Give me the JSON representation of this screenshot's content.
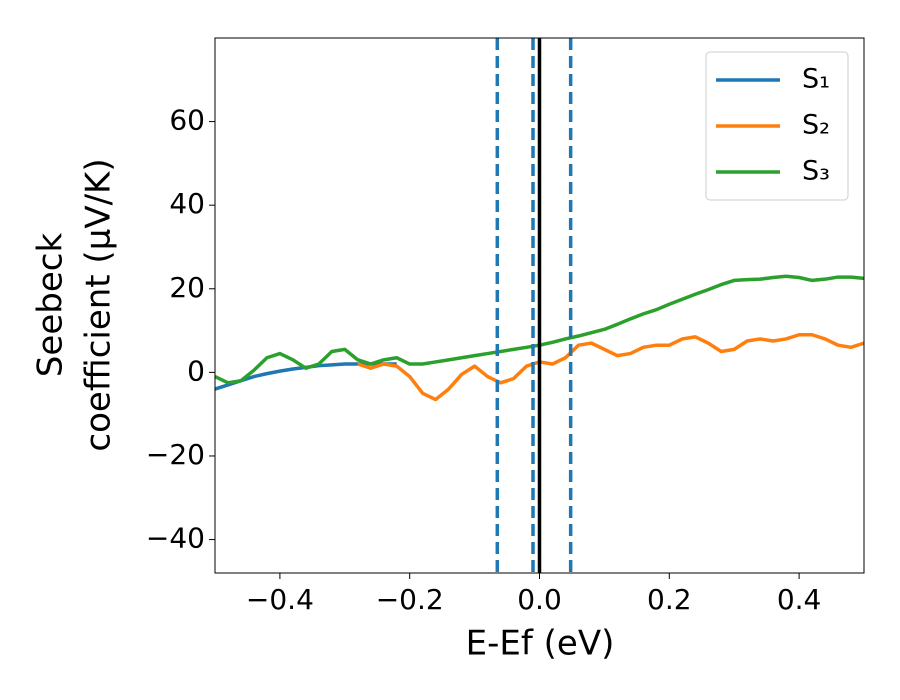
{
  "chart_data": {
    "type": "line",
    "ylabel": [
      "Seebeck",
      "coefficient  (μV/K)"
    ],
    "xlabel": "E-Ef (eV)",
    "x": [
      -0.5,
      -0.48,
      -0.46,
      -0.44,
      -0.42,
      -0.4,
      -0.38,
      -0.36,
      -0.34,
      -0.32,
      -0.3,
      -0.28,
      -0.26,
      -0.24,
      -0.22,
      -0.2,
      -0.18,
      -0.16,
      -0.14,
      -0.12,
      -0.1,
      -0.08,
      -0.06,
      -0.04,
      -0.02,
      0,
      0.02,
      0.04,
      0.06,
      0.08,
      0.1,
      0.12,
      0.14,
      0.16,
      0.18,
      0.2,
      0.22,
      0.24,
      0.26,
      0.28,
      0.3,
      0.32,
      0.34,
      0.36,
      0.38,
      0.4,
      0.42,
      0.44,
      0.46,
      0.48,
      0.5
    ],
    "series": [
      {
        "name": "S₁",
        "color": "#1f77b4",
        "values": [
          -4,
          -3,
          -2,
          -1,
          -0.3,
          0.3,
          0.8,
          1.2,
          1.6,
          1.8,
          2,
          2,
          2,
          2,
          2,
          null,
          null,
          null,
          null,
          null,
          null,
          null,
          null,
          null,
          null,
          null,
          null,
          null,
          null,
          null,
          null,
          null,
          null,
          null,
          null,
          null,
          null,
          null,
          null,
          null,
          null,
          null,
          null,
          null,
          null,
          null,
          null,
          null,
          null,
          null,
          null
        ]
      },
      {
        "name": "S₂",
        "color": "#ff7f0e",
        "values": [
          null,
          null,
          null,
          null,
          null,
          null,
          null,
          null,
          null,
          null,
          null,
          2,
          1,
          2,
          1.5,
          -1,
          -5,
          -6.5,
          -4,
          -0.5,
          1.5,
          -1,
          -2.5,
          -1.5,
          1.5,
          2.5,
          2,
          3.5,
          6.5,
          7,
          5.5,
          4,
          4.5,
          6,
          6.5,
          6.5,
          8,
          8.5,
          7,
          5,
          5.5,
          7.5,
          8,
          7.5,
          8,
          9,
          9,
          8,
          6.5,
          6,
          7
        ]
      },
      {
        "name": "S₃",
        "color": "#2ca02c",
        "values": [
          -1,
          -2.5,
          -2,
          0.5,
          3.5,
          4.5,
          3,
          1,
          2,
          5,
          5.5,
          3,
          2,
          3,
          3.5,
          2,
          2,
          2.5,
          3,
          3.5,
          4,
          4.5,
          5,
          5.5,
          6,
          6.5,
          7.2,
          8,
          8.7,
          9.5,
          10.3,
          11.5,
          12.8,
          14,
          15,
          16.3,
          17.5,
          18.7,
          19.8,
          21,
          22,
          22.2,
          22.3,
          22.7,
          23,
          22.7,
          22,
          22.3,
          22.8,
          22.8,
          22.5
        ]
      }
    ],
    "vlines": [
      {
        "x": -0.065,
        "color": "#1f77b4",
        "dashed": true
      },
      {
        "x": -0.01,
        "color": "#1f77b4",
        "dashed": true
      },
      {
        "x": 0.048,
        "color": "#1f77b4",
        "dashed": true
      },
      {
        "x": 0,
        "color": "#000000",
        "dashed": false
      }
    ],
    "xlim": [
      -0.5,
      0.5
    ],
    "ylim": [
      -48,
      80
    ],
    "xticks": [
      {
        "value": -0.4,
        "label": "−0.4"
      },
      {
        "value": -0.2,
        "label": "−0.2"
      },
      {
        "value": 0,
        "label": "0.0"
      },
      {
        "value": 0.2,
        "label": "0.2"
      },
      {
        "value": 0.4,
        "label": "0.4"
      }
    ],
    "yticks": [
      {
        "value": -40,
        "label": "−40"
      },
      {
        "value": -20,
        "label": "−20"
      },
      0,
      20,
      40,
      60
    ],
    "legend": "upper right",
    "grid": false
  }
}
